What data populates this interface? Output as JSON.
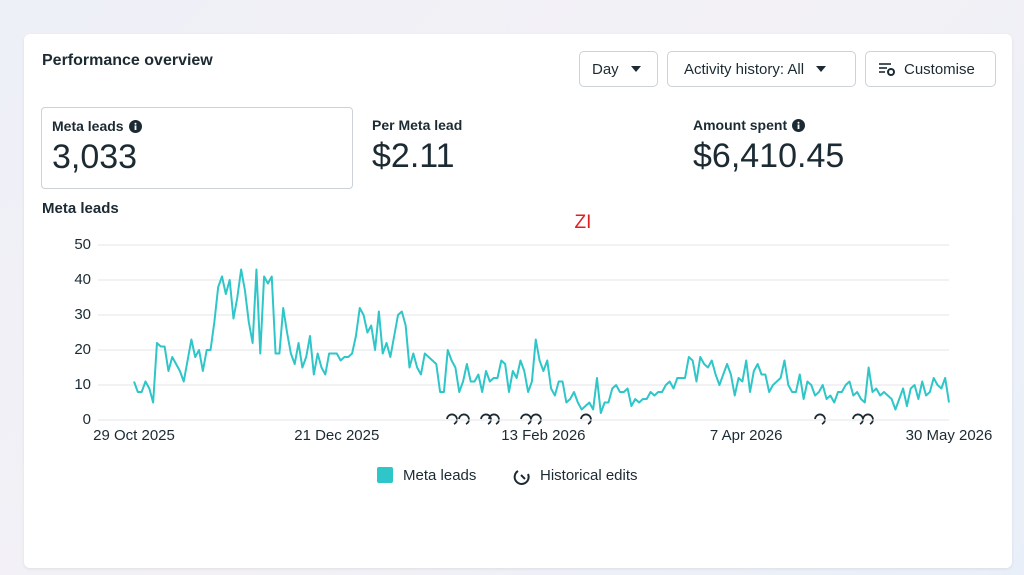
{
  "header": {
    "title": "Performance overview"
  },
  "controls": {
    "period": "Day",
    "activity": "Activity history: All",
    "customise": "Customise"
  },
  "metrics": [
    {
      "label": "Meta leads",
      "value": "3,033"
    },
    {
      "label": "Per Meta lead",
      "value": "$2.11"
    },
    {
      "label": "Amount spent",
      "value": "$6,410.45"
    }
  ],
  "chart_data": {
    "type": "line",
    "title": "Meta leads",
    "annotation": "ZI",
    "categories": [
      "29 Oct 2025",
      null,
      null,
      null,
      null,
      null,
      null,
      null,
      null,
      null,
      null,
      null,
      null,
      null,
      null,
      null,
      null,
      null,
      null,
      null,
      null,
      null,
      null,
      null,
      null,
      null,
      null,
      null,
      null,
      null,
      null,
      null,
      null,
      null,
      null,
      null,
      null,
      null,
      null,
      null,
      null,
      null,
      null,
      null,
      null,
      null,
      null,
      null,
      null,
      null,
      null,
      null,
      null,
      "21 Dec 2025",
      null,
      null,
      null,
      null,
      null,
      null,
      null,
      null,
      null,
      null,
      null,
      null,
      null,
      null,
      null,
      null,
      null,
      null,
      null,
      null,
      null,
      null,
      null,
      null,
      null,
      null,
      null,
      null,
      null,
      null,
      null,
      null,
      null,
      null,
      null,
      null,
      null,
      null,
      null,
      null,
      null,
      null,
      null,
      null,
      null,
      null,
      null,
      null,
      null,
      null,
      null,
      null,
      null,
      "13 Feb 2026",
      null,
      null,
      null,
      null,
      null,
      null,
      null,
      null,
      null,
      null,
      null,
      null,
      null,
      null,
      null,
      null,
      null,
      null,
      null,
      null,
      null,
      null,
      null,
      null,
      null,
      null,
      null,
      null,
      null,
      null,
      null,
      null,
      null,
      null,
      null,
      null,
      null,
      null,
      null,
      null,
      null,
      null,
      null,
      null,
      null,
      null,
      null,
      null,
      null,
      null,
      null,
      null,
      "7 Apr 2026",
      null,
      null,
      null,
      null,
      null,
      null,
      null,
      null,
      null,
      null,
      null,
      null,
      null,
      null,
      null,
      null,
      null,
      null,
      null,
      null,
      null,
      null,
      null,
      null,
      null,
      null,
      null,
      null,
      null,
      null,
      null,
      null,
      null,
      null,
      null,
      null,
      null,
      null,
      null,
      null,
      null,
      null,
      null,
      null,
      null,
      null,
      null,
      null,
      null,
      null,
      null,
      null,
      "30 May 2026"
    ],
    "series": [
      {
        "name": "Meta leads",
        "color": "#2ec6c8",
        "values": [
          11,
          8,
          8,
          11,
          9,
          5,
          22,
          21,
          21,
          14,
          18,
          16,
          14,
          11,
          17,
          23,
          18,
          20,
          14,
          20,
          20,
          28,
          38,
          41,
          36,
          40,
          29,
          35,
          43,
          37,
          28,
          22,
          43,
          19,
          41,
          39,
          41,
          19,
          19,
          32,
          25,
          19,
          16,
          22,
          15,
          18,
          24,
          13,
          19,
          15,
          13,
          19,
          19,
          19,
          17,
          18,
          18,
          19,
          24,
          32,
          30,
          25,
          27,
          20,
          31,
          19,
          22,
          18,
          24,
          30,
          31,
          27,
          15,
          19,
          15,
          13,
          19,
          18,
          17,
          16,
          8,
          8,
          20,
          17,
          15,
          8,
          11,
          16,
          11,
          11,
          13,
          8,
          14,
          11,
          12,
          12,
          17,
          16,
          8,
          14,
          12,
          17,
          14,
          8,
          11,
          23,
          17,
          14,
          17,
          9,
          7,
          11,
          11,
          5,
          6,
          8,
          5,
          3,
          4,
          5,
          3,
          12,
          2,
          5,
          5,
          9,
          10,
          8,
          8,
          9,
          4,
          6,
          5,
          6,
          6,
          8,
          7,
          8,
          8,
          10,
          11,
          9,
          12,
          12,
          12,
          18,
          17,
          11,
          18,
          16,
          15,
          17,
          13,
          10,
          13,
          16,
          13,
          7,
          12,
          11,
          17,
          8,
          14,
          16,
          13,
          13,
          8,
          10,
          11,
          12,
          17,
          10,
          8,
          8,
          13,
          6,
          11,
          10,
          7,
          8,
          10,
          6,
          7,
          5,
          8,
          8,
          10,
          11,
          7,
          8,
          6,
          5,
          15,
          8,
          9,
          7,
          8,
          7,
          6,
          3,
          6,
          9,
          4,
          9,
          10,
          6,
          11,
          7,
          8,
          12,
          10,
          9,
          12,
          5
        ]
      }
    ],
    "ylim": [
      0,
      50
    ],
    "yticks": [
      0,
      10,
      20,
      30,
      40,
      50
    ],
    "grid": true,
    "legend": "bottom",
    "extra_legend": "Historical edits"
  }
}
